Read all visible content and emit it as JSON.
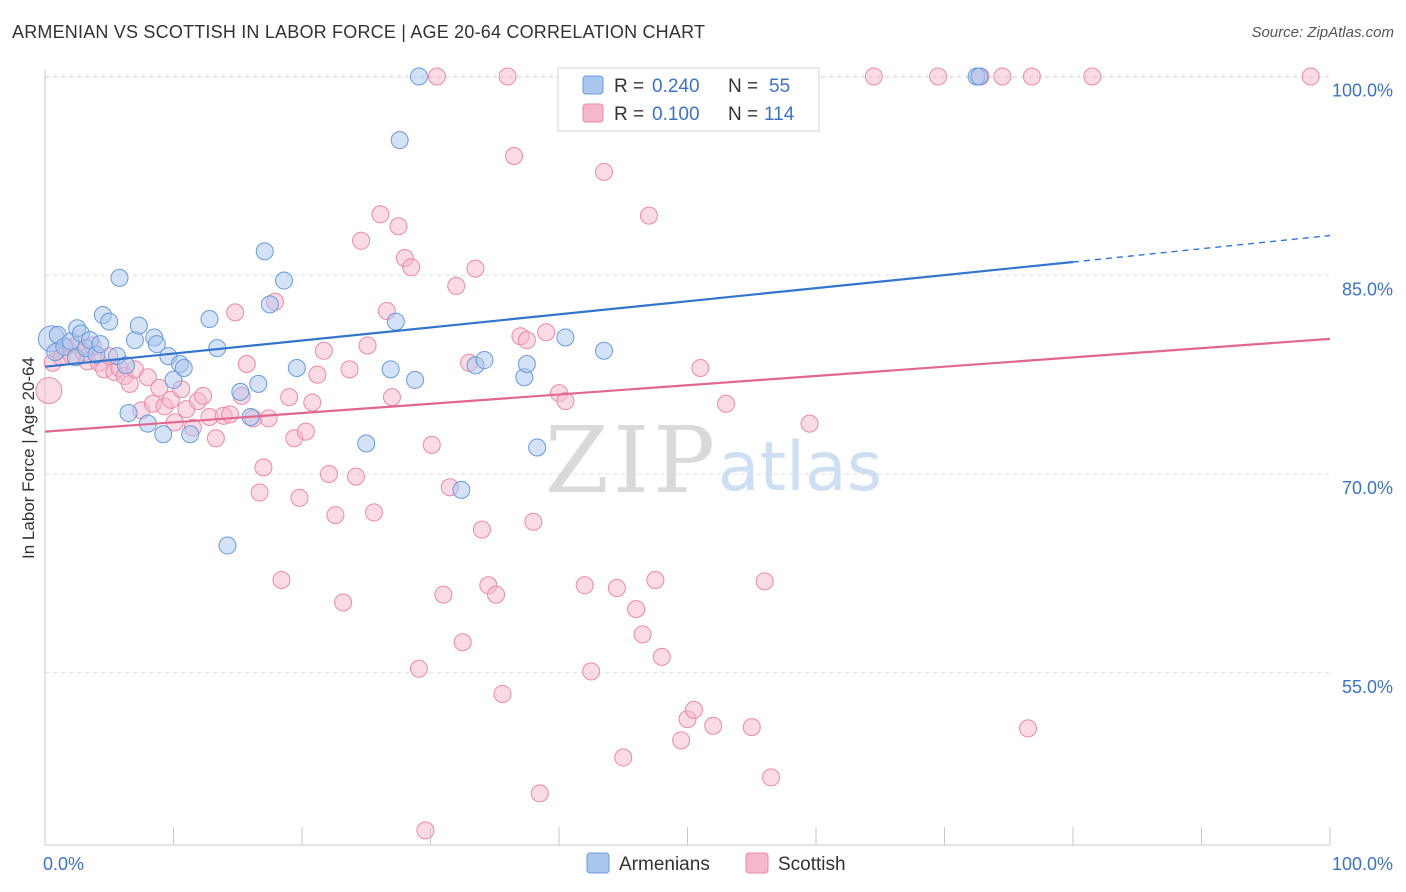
{
  "title": "ARMENIAN VS SCOTTISH IN LABOR FORCE | AGE 20-64 CORRELATION CHART",
  "source": "Source: ZipAtlas.com",
  "watermark": {
    "zip": "ZIP",
    "atlas": "atlas"
  },
  "colors": {
    "armenians_fill": "#a9c6ef",
    "armenians_stroke": "#6a9bd8",
    "armenians_line": "#3375cc",
    "scottish_fill": "#f5b8cb",
    "scottish_stroke": "#e98aaa",
    "scottish_line": "#e06790",
    "axis_label": "#3d72c4",
    "grid": "#dddddd"
  },
  "legend": {
    "rows": [
      {
        "r_label": "R =",
        "r_value": "0.240",
        "n_label": "N =",
        "n_value": "55"
      },
      {
        "r_label": "R =",
        "r_value": "0.100",
        "n_label": "N =",
        "n_value": "114"
      }
    ],
    "bottom": [
      "Armenians",
      "Scottish"
    ]
  },
  "chart_data": {
    "type": "scatter",
    "xlabel": "",
    "ylabel": "In Labor Force | Age 20-64",
    "xlim": [
      0,
      100
    ],
    "ylim": [
      42,
      102
    ],
    "x_tick_labels": [
      "0.0%",
      "100.0%"
    ],
    "y_ticks": [
      55,
      70,
      85,
      100
    ],
    "y_tick_labels": [
      "55.0%",
      "70.0%",
      "85.0%",
      "100.0%"
    ],
    "grid": true,
    "legend_position": "top-center",
    "series": [
      {
        "name": "Armenians",
        "r": 0.24,
        "n": 55,
        "trend": {
          "x0": 0,
          "y0": 78.1,
          "x1": 80,
          "y1": 86.0,
          "dashed_to_x": 100,
          "dashed_to_y": 88.0
        },
        "points": [
          [
            0.5,
            80.2
          ],
          [
            0.8,
            79.2
          ],
          [
            1.0,
            80.5
          ],
          [
            1.5,
            79.6
          ],
          [
            2.0,
            80.0
          ],
          [
            2.4,
            78.8
          ],
          [
            2.5,
            81.0
          ],
          [
            2.8,
            80.6
          ],
          [
            3.2,
            79.5
          ],
          [
            3.5,
            80.1
          ],
          [
            4.0,
            79.0
          ],
          [
            4.3,
            79.8
          ],
          [
            4.5,
            82.0
          ],
          [
            5.0,
            81.5
          ],
          [
            5.6,
            78.9
          ],
          [
            5.8,
            84.8
          ],
          [
            6.3,
            78.2
          ],
          [
            6.5,
            74.6
          ],
          [
            7.0,
            80.1
          ],
          [
            7.3,
            81.2
          ],
          [
            8.0,
            73.8
          ],
          [
            8.5,
            80.3
          ],
          [
            8.7,
            79.8
          ],
          [
            9.2,
            73.0
          ],
          [
            9.6,
            78.9
          ],
          [
            10.0,
            77.1
          ],
          [
            10.5,
            78.3
          ],
          [
            10.8,
            78.0
          ],
          [
            11.3,
            73.0
          ],
          [
            12.8,
            81.7
          ],
          [
            13.4,
            79.5
          ],
          [
            14.2,
            64.6
          ],
          [
            15.2,
            76.2
          ],
          [
            16.0,
            74.3
          ],
          [
            16.6,
            76.8
          ],
          [
            17.1,
            86.8
          ],
          [
            17.5,
            82.8
          ],
          [
            18.6,
            84.6
          ],
          [
            19.6,
            78.0
          ],
          [
            25.0,
            72.3
          ],
          [
            26.9,
            77.9
          ],
          [
            27.3,
            81.5
          ],
          [
            27.6,
            95.2
          ],
          [
            28.8,
            77.1
          ],
          [
            29.1,
            100.0
          ],
          [
            32.4,
            68.8
          ],
          [
            33.5,
            78.2
          ],
          [
            34.2,
            78.6
          ],
          [
            37.3,
            77.3
          ],
          [
            37.5,
            78.3
          ],
          [
            38.3,
            72.0
          ],
          [
            40.5,
            80.3
          ],
          [
            43.5,
            79.3
          ],
          [
            72.5,
            100.0
          ],
          [
            72.7,
            100.0
          ]
        ]
      },
      {
        "name": "Scottish",
        "r": 0.1,
        "n": 114,
        "trend": {
          "x0": 0,
          "y0": 73.2,
          "x1": 100,
          "y1": 80.2
        },
        "points": [
          [
            0.3,
            76.3
          ],
          [
            0.6,
            78.4
          ],
          [
            1.0,
            79.3
          ],
          [
            1.3,
            78.8
          ],
          [
            1.7,
            79.6
          ],
          [
            2.1,
            78.9
          ],
          [
            2.5,
            79.8
          ],
          [
            3.0,
            79.2
          ],
          [
            3.3,
            78.5
          ],
          [
            3.7,
            79.7
          ],
          [
            4.2,
            78.4
          ],
          [
            4.6,
            77.9
          ],
          [
            5.0,
            78.9
          ],
          [
            5.4,
            77.7
          ],
          [
            5.8,
            78.0
          ],
          [
            6.2,
            77.4
          ],
          [
            6.6,
            76.8
          ],
          [
            7.0,
            77.9
          ],
          [
            7.5,
            74.8
          ],
          [
            8.0,
            77.3
          ],
          [
            8.4,
            75.3
          ],
          [
            8.9,
            76.5
          ],
          [
            9.3,
            75.1
          ],
          [
            9.8,
            75.6
          ],
          [
            10.1,
            73.9
          ],
          [
            10.6,
            76.4
          ],
          [
            11.0,
            74.9
          ],
          [
            11.5,
            73.5
          ],
          [
            11.9,
            75.5
          ],
          [
            12.3,
            75.9
          ],
          [
            12.8,
            74.3
          ],
          [
            13.3,
            72.7
          ],
          [
            13.9,
            74.4
          ],
          [
            14.4,
            74.5
          ],
          [
            14.8,
            82.2
          ],
          [
            15.3,
            75.9
          ],
          [
            15.7,
            78.3
          ],
          [
            16.2,
            74.2
          ],
          [
            16.7,
            68.6
          ],
          [
            17.0,
            70.5
          ],
          [
            17.4,
            74.2
          ],
          [
            17.9,
            83.0
          ],
          [
            18.4,
            62.0
          ],
          [
            19.0,
            75.8
          ],
          [
            19.4,
            72.7
          ],
          [
            19.8,
            68.2
          ],
          [
            20.3,
            73.2
          ],
          [
            20.8,
            75.4
          ],
          [
            21.2,
            77.5
          ],
          [
            21.7,
            79.3
          ],
          [
            22.1,
            70.0
          ],
          [
            22.6,
            66.9
          ],
          [
            23.2,
            60.3
          ],
          [
            23.7,
            77.9
          ],
          [
            24.2,
            69.8
          ],
          [
            24.6,
            87.6
          ],
          [
            25.1,
            79.7
          ],
          [
            25.6,
            67.1
          ],
          [
            26.1,
            89.6
          ],
          [
            26.6,
            82.3
          ],
          [
            27.0,
            75.8
          ],
          [
            27.5,
            88.7
          ],
          [
            28.0,
            86.3
          ],
          [
            28.5,
            85.6
          ],
          [
            29.1,
            55.3
          ],
          [
            29.6,
            43.1
          ],
          [
            30.1,
            72.2
          ],
          [
            30.5,
            100.0
          ],
          [
            31.0,
            60.9
          ],
          [
            31.5,
            69.0
          ],
          [
            32.0,
            84.2
          ],
          [
            32.5,
            57.3
          ],
          [
            33.0,
            78.4
          ],
          [
            33.5,
            85.5
          ],
          [
            34.0,
            65.8
          ],
          [
            34.5,
            61.6
          ],
          [
            35.1,
            60.9
          ],
          [
            35.6,
            53.4
          ],
          [
            36.0,
            100.0
          ],
          [
            36.5,
            94.0
          ],
          [
            37.0,
            80.4
          ],
          [
            37.5,
            80.1
          ],
          [
            38.0,
            66.4
          ],
          [
            38.5,
            45.9
          ],
          [
            39.0,
            80.7
          ],
          [
            40.0,
            76.1
          ],
          [
            40.5,
            75.5
          ],
          [
            42.0,
            61.6
          ],
          [
            42.5,
            55.1
          ],
          [
            43.5,
            92.8
          ],
          [
            44.5,
            61.4
          ],
          [
            45.0,
            48.6
          ],
          [
            46.0,
            59.8
          ],
          [
            46.5,
            57.9
          ],
          [
            47.0,
            89.5
          ],
          [
            47.5,
            62.0
          ],
          [
            48.0,
            56.2
          ],
          [
            49.5,
            49.9
          ],
          [
            50.0,
            51.5
          ],
          [
            50.5,
            52.2
          ],
          [
            51.0,
            78.0
          ],
          [
            52.0,
            51.0
          ],
          [
            53.0,
            75.3
          ],
          [
            55.0,
            50.9
          ],
          [
            56.0,
            61.9
          ],
          [
            56.5,
            47.1
          ],
          [
            59.0,
            100.0
          ],
          [
            59.5,
            73.8
          ],
          [
            64.5,
            100.0
          ],
          [
            69.5,
            100.0
          ],
          [
            72.8,
            100.0
          ],
          [
            74.5,
            100.0
          ],
          [
            76.5,
            50.8
          ],
          [
            76.8,
            100.0
          ],
          [
            81.5,
            100.0
          ],
          [
            98.5,
            100.0
          ]
        ]
      }
    ]
  }
}
